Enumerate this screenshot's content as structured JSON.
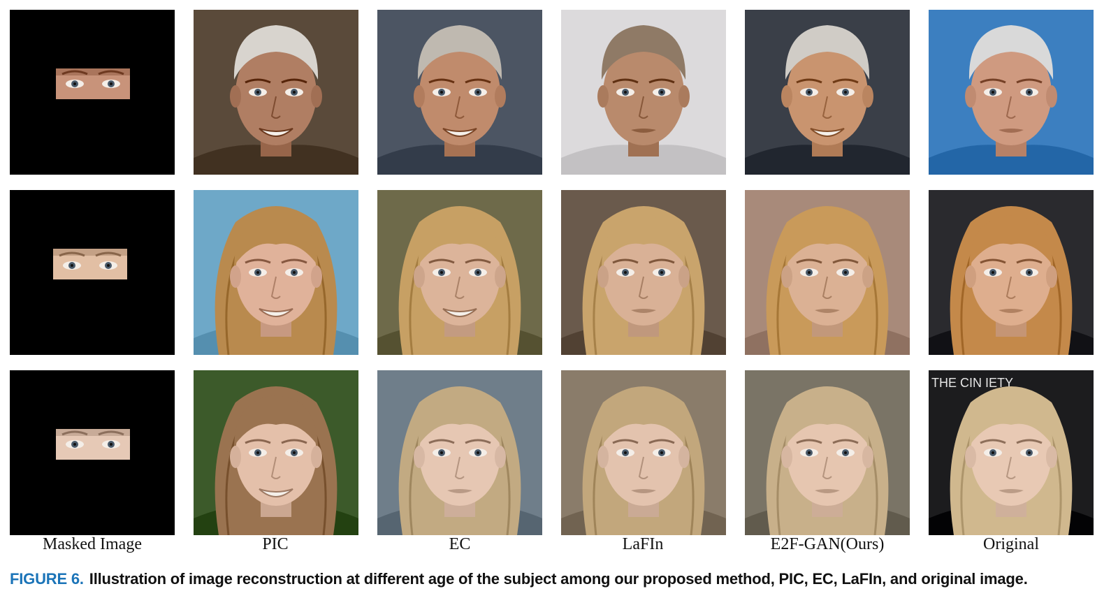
{
  "figure": {
    "columns": [
      "Masked Image",
      "PIC",
      "EC",
      "LaFIn",
      "E2F-GAN(Ours)",
      "Original"
    ],
    "rows": [
      {
        "subject": "older man, grey-white hair",
        "cells": [
          {
            "kind": "masked",
            "bg": "#000000",
            "skin": "#c8937a",
            "hair": "#d9d6d2"
          },
          {
            "kind": "face",
            "bg": "#5a4a3a",
            "skin": "#b07e63",
            "hair": "#d8d4ce",
            "expr": "smile"
          },
          {
            "kind": "face",
            "bg": "#4c5563",
            "skin": "#c08b6c",
            "hair": "#bfb9b0",
            "expr": "smile"
          },
          {
            "kind": "face",
            "bg": "#dcdadc",
            "skin": "#b98a6c",
            "hair": "#8f7a66",
            "expr": "neutral"
          },
          {
            "kind": "face",
            "bg": "#3a3f48",
            "skin": "#c9946f",
            "hair": "#d0ccc6",
            "expr": "smile"
          },
          {
            "kind": "face",
            "bg": "#3c7fc0",
            "skin": "#cf9a80",
            "hair": "#d9d9d9",
            "expr": "neutral"
          }
        ]
      },
      {
        "subject": "middle-aged woman, blonde hair",
        "cells": [
          {
            "kind": "masked",
            "bg": "#000000",
            "skin": "#e2bfa4",
            "hair": "#c9a064"
          },
          {
            "kind": "face",
            "bg": "#6ea8c8",
            "skin": "#e0b29a",
            "hair": "#b98a4e",
            "expr": "smile"
          },
          {
            "kind": "face",
            "bg": "#6e6a4a",
            "skin": "#dcb49a",
            "hair": "#c7a064",
            "expr": "smile"
          },
          {
            "kind": "face",
            "bg": "#6a5a4c",
            "skin": "#d9b196",
            "hair": "#c9a46c",
            "expr": "neutral"
          },
          {
            "kind": "face",
            "bg": "#a88a7a",
            "skin": "#dbb194",
            "hair": "#c99a5a",
            "expr": "neutral"
          },
          {
            "kind": "face",
            "bg": "#2a2a2e",
            "skin": "#deae8e",
            "hair": "#c4894a",
            "expr": "neutral"
          }
        ]
      },
      {
        "subject": "young woman, light blonde hair",
        "cells": [
          {
            "kind": "masked",
            "bg": "#000000",
            "skin": "#e6c9b6",
            "hair": "#c6ad84"
          },
          {
            "kind": "face",
            "bg": "#3c5a2a",
            "skin": "#e4c0aa",
            "hair": "#9a7350",
            "expr": "smile"
          },
          {
            "kind": "face",
            "bg": "#6f7e8a",
            "skin": "#e6c7b3",
            "hair": "#c2aa82",
            "expr": "neutral"
          },
          {
            "kind": "face",
            "bg": "#8a7c6a",
            "skin": "#e3c3ae",
            "hair": "#c2a77c",
            "expr": "neutral"
          },
          {
            "kind": "face",
            "bg": "#7a7466",
            "skin": "#e6c6b0",
            "hair": "#c8b08a",
            "expr": "neutral"
          },
          {
            "kind": "face",
            "bg": "#1c1c1e",
            "skin": "#e8c9b4",
            "hair": "#d0b88e",
            "expr": "neutral",
            "bg_text": "THE CIN      IETY"
          }
        ]
      }
    ]
  },
  "caption": {
    "label": "FIGURE 6.",
    "text": "Illustration of image reconstruction at different age of the subject among our proposed method, PIC, EC, LaFIn, and original image.",
    "label_color": "#1b74b8"
  }
}
